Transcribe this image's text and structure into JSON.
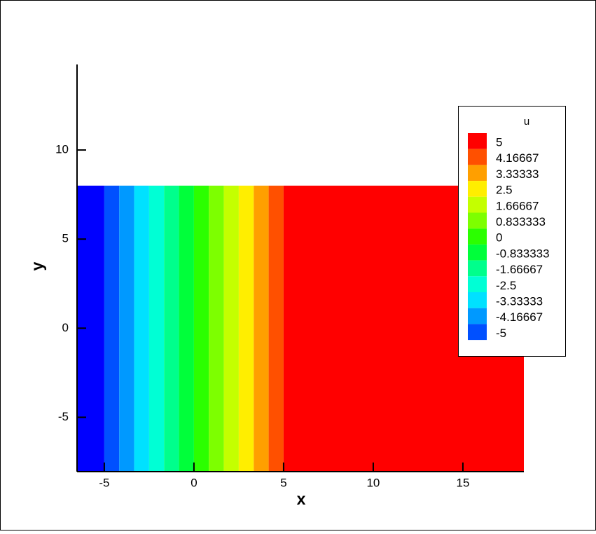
{
  "chart_data": {
    "type": "contour",
    "xlabel": "x",
    "ylabel": "y",
    "xlim": [
      -6.52,
      18.4
    ],
    "ylim": [
      -8.05,
      14.8
    ],
    "xticks": [
      -5,
      0,
      5,
      10,
      15
    ],
    "yticks": [
      -5,
      0,
      5,
      10
    ],
    "data_xlim": [
      -6.52,
      18.4
    ],
    "data_ylim": [
      -8.05,
      8
    ],
    "legend_title": "u",
    "levels": [
      5,
      4.16667,
      3.33333,
      2.5,
      1.66667,
      0.833333,
      0,
      -0.833333,
      -1.66667,
      -2.5,
      -3.33333,
      -4.16667,
      -5
    ],
    "colors": [
      "#ff0000",
      "#ff5000",
      "#ff9f00",
      "#ffee00",
      "#c4ff00",
      "#7dff00",
      "#2bff00",
      "#00ff3a",
      "#00ff8c",
      "#00ffd5",
      "#00e1ff",
      "#0099ff",
      "#0050ff"
    ],
    "below_color": "#0000ff",
    "legend": "right"
  }
}
